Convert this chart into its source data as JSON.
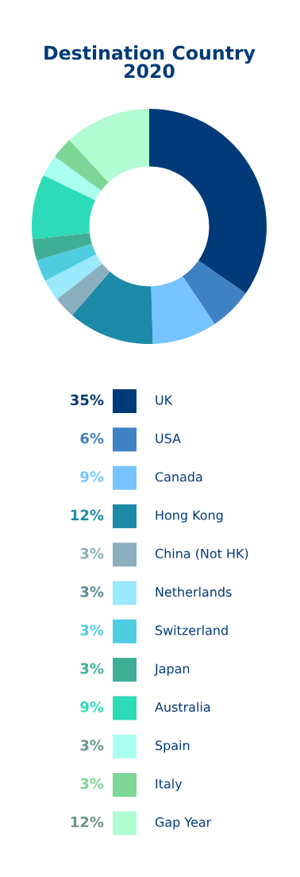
{
  "chart_data": {
    "type": "donut",
    "title": "Destination Country\n2020",
    "categories": [
      "UK",
      "USA",
      "Canada",
      "Hong Kong",
      "China (Not HK)",
      "Netherlands",
      "Switzerland",
      "Japan",
      "Australia",
      "Spain",
      "Italy",
      "Gap Year"
    ],
    "values": [
      35,
      6,
      9,
      12,
      3,
      3,
      3,
      3,
      9,
      3,
      3,
      12
    ],
    "value_labels": [
      "35%",
      "6%",
      "9%",
      "12%",
      "3%",
      "3%",
      "3%",
      "3%",
      "9%",
      "3%",
      "3%",
      "12%"
    ],
    "colors": [
      "#003a78",
      "#3f82c4",
      "#76c3ff",
      "#1d8aa8",
      "#8aafbd",
      "#9ae9fd",
      "#4fcde0",
      "#3fae97",
      "#2ddbb8",
      "#abfff0",
      "#7dd696",
      "#b2fcd2"
    ],
    "legend": "bottom"
  }
}
